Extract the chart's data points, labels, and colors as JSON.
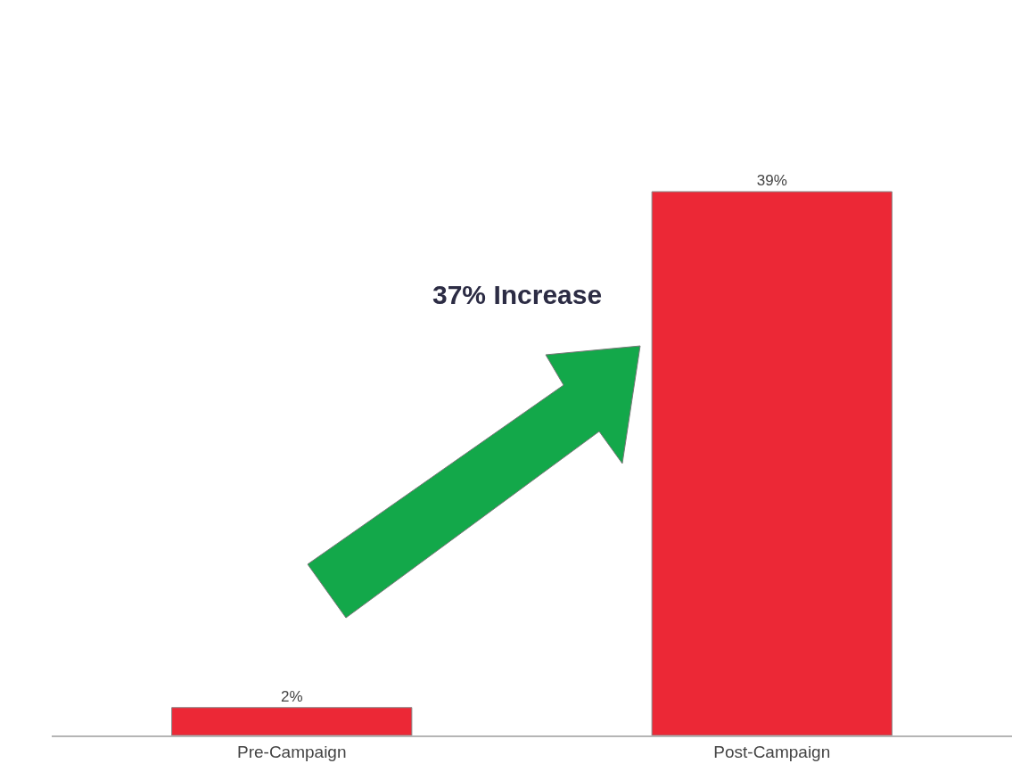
{
  "chart_data": {
    "type": "bar",
    "categories": [
      "Pre-Campaign",
      "Post-Campaign"
    ],
    "values": [
      2,
      39
    ],
    "color": "#ec2836",
    "data_labels": true,
    "value_labels": [
      "2%",
      "39%"
    ],
    "annotations": [
      "37% Increase"
    ],
    "legend": false
  }
}
